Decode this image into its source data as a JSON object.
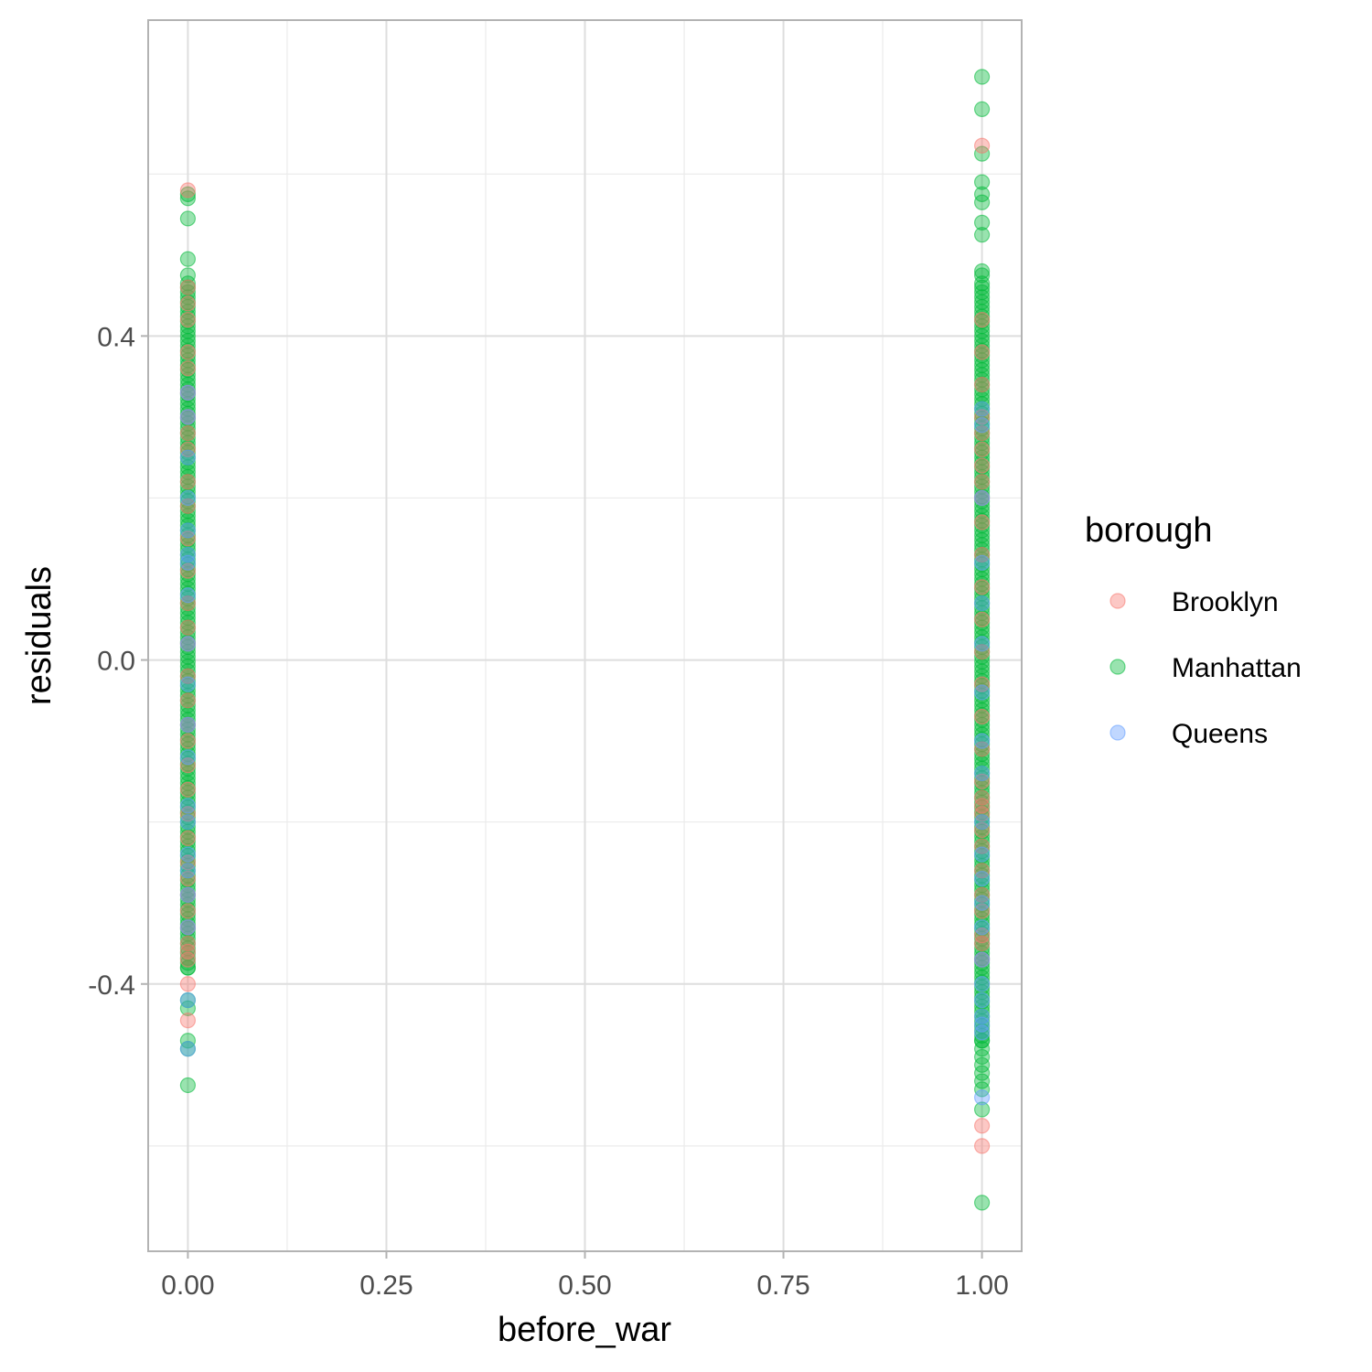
{
  "chart_data": {
    "type": "scatter",
    "xlabel": "before_war",
    "ylabel": "residuals",
    "xlim": [
      -0.05,
      1.05
    ],
    "ylim": [
      -0.73,
      0.79
    ],
    "x_ticks": [
      "0.00",
      "0.25",
      "0.50",
      "0.75",
      "1.00"
    ],
    "x_tick_values": [
      0,
      0.25,
      0.5,
      0.75,
      1.0
    ],
    "y_ticks": [
      "-0.4",
      "0.0",
      "0.4"
    ],
    "y_tick_values": [
      -0.4,
      0.0,
      0.4
    ],
    "grid": true,
    "legend": {
      "title": "borough",
      "position": "right"
    },
    "series": [
      {
        "name": "Brooklyn",
        "color": "#F8766D",
        "points": [
          [
            0,
            0.58
          ],
          [
            0,
            0.46
          ],
          [
            0,
            0.44
          ],
          [
            0,
            0.42
          ],
          [
            0,
            0.38
          ],
          [
            0,
            0.36
          ],
          [
            0,
            0.33
          ],
          [
            0,
            0.3
          ],
          [
            0,
            0.28
          ],
          [
            0,
            0.26
          ],
          [
            0,
            0.22
          ],
          [
            0,
            0.19
          ],
          [
            0,
            0.15
          ],
          [
            0,
            0.11
          ],
          [
            0,
            0.07
          ],
          [
            0,
            0.04
          ],
          [
            0,
            0.02
          ],
          [
            0,
            -0.02
          ],
          [
            0,
            -0.05
          ],
          [
            0,
            -0.08
          ],
          [
            0,
            -0.1
          ],
          [
            0,
            -0.13
          ],
          [
            0,
            -0.16
          ],
          [
            0,
            -0.19
          ],
          [
            0,
            -0.22
          ],
          [
            0,
            -0.25
          ],
          [
            0,
            -0.27
          ],
          [
            0,
            -0.29
          ],
          [
            0,
            -0.31
          ],
          [
            0,
            -0.33
          ],
          [
            0,
            -0.35
          ],
          [
            0,
            -0.36
          ],
          [
            0,
            -0.37
          ],
          [
            0,
            -0.4
          ],
          [
            0,
            -0.445
          ],
          [
            1,
            0.635
          ],
          [
            1,
            0.42
          ],
          [
            1,
            0.38
          ],
          [
            1,
            0.34
          ],
          [
            1,
            0.3
          ],
          [
            1,
            0.28
          ],
          [
            1,
            0.26
          ],
          [
            1,
            0.24
          ],
          [
            1,
            0.22
          ],
          [
            1,
            0.2
          ],
          [
            1,
            0.17
          ],
          [
            1,
            0.13
          ],
          [
            1,
            0.09
          ],
          [
            1,
            0.05
          ],
          [
            1,
            0.01
          ],
          [
            1,
            -0.03
          ],
          [
            1,
            -0.07
          ],
          [
            1,
            -0.11
          ],
          [
            1,
            -0.15
          ],
          [
            1,
            -0.17
          ],
          [
            1,
            -0.18
          ],
          [
            1,
            -0.19
          ],
          [
            1,
            -0.21
          ],
          [
            1,
            -0.23
          ],
          [
            1,
            -0.26
          ],
          [
            1,
            -0.29
          ],
          [
            1,
            -0.31
          ],
          [
            1,
            -0.34
          ],
          [
            1,
            -0.35
          ],
          [
            1,
            -0.37
          ],
          [
            1,
            -0.575
          ],
          [
            1,
            -0.6
          ]
        ]
      },
      {
        "name": "Manhattan",
        "color": "#00BA38",
        "points": [
          [
            0,
            0.575
          ],
          [
            0,
            0.57
          ],
          [
            0,
            0.545
          ],
          [
            0,
            0.495
          ],
          [
            0,
            0.475
          ],
          [
            0,
            0.465
          ],
          [
            0,
            -0.38
          ],
          [
            0,
            -0.42
          ],
          [
            0,
            -0.43
          ],
          [
            0,
            -0.47
          ],
          [
            0,
            -0.48
          ],
          [
            0,
            -0.525
          ],
          [
            1,
            0.72
          ],
          [
            1,
            0.68
          ],
          [
            1,
            0.625
          ],
          [
            1,
            0.59
          ],
          [
            1,
            0.575
          ],
          [
            1,
            0.565
          ],
          [
            1,
            0.54
          ],
          [
            1,
            0.525
          ],
          [
            1,
            0.48
          ],
          [
            1,
            0.475
          ],
          [
            1,
            0.465
          ],
          [
            1,
            -0.47
          ],
          [
            1,
            -0.48
          ],
          [
            1,
            -0.49
          ],
          [
            1,
            -0.5
          ],
          [
            1,
            -0.51
          ],
          [
            1,
            -0.52
          ],
          [
            1,
            -0.53
          ],
          [
            1,
            -0.555
          ],
          [
            1,
            -0.67
          ]
        ]
      },
      {
        "name": "Queens",
        "color": "#619CFF",
        "points": [
          [
            0,
            0.33
          ],
          [
            0,
            0.3
          ],
          [
            0,
            0.25
          ],
          [
            0,
            0.2
          ],
          [
            0,
            0.16
          ],
          [
            0,
            0.13
          ],
          [
            0,
            0.12
          ],
          [
            0,
            0.08
          ],
          [
            0,
            0.02
          ],
          [
            0,
            -0.03
          ],
          [
            0,
            -0.08
          ],
          [
            0,
            -0.12
          ],
          [
            0,
            -0.18
          ],
          [
            0,
            -0.2
          ],
          [
            0,
            -0.24
          ],
          [
            0,
            -0.26
          ],
          [
            0,
            -0.29
          ],
          [
            0,
            -0.33
          ],
          [
            0,
            -0.42
          ],
          [
            0,
            -0.48
          ],
          [
            1,
            0.31
          ],
          [
            1,
            0.29
          ],
          [
            1,
            0.2
          ],
          [
            1,
            0.12
          ],
          [
            1,
            0.07
          ],
          [
            1,
            0.02
          ],
          [
            1,
            -0.04
          ],
          [
            1,
            -0.1
          ],
          [
            1,
            -0.14
          ],
          [
            1,
            -0.2
          ],
          [
            1,
            -0.24
          ],
          [
            1,
            -0.27
          ],
          [
            1,
            -0.3
          ],
          [
            1,
            -0.33
          ],
          [
            1,
            -0.37
          ],
          [
            1,
            -0.4
          ],
          [
            1,
            -0.42
          ],
          [
            1,
            -0.44
          ],
          [
            1,
            -0.45
          ],
          [
            1,
            -0.46
          ],
          [
            1,
            -0.54
          ]
        ]
      }
    ]
  }
}
